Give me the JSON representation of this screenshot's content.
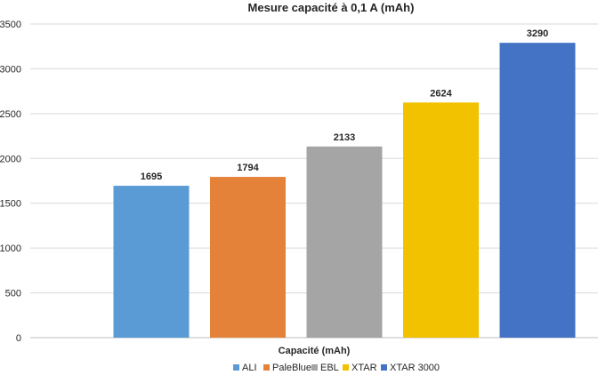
{
  "chart_data": {
    "type": "bar",
    "title": "Mesure capacité à 0,1 A (mAh)",
    "xlabel": "Capacité (mAh)",
    "ylabel": "",
    "ylim": [
      0,
      3500
    ],
    "yticks": [
      0,
      500,
      1000,
      1500,
      2000,
      2500,
      3000,
      3500
    ],
    "grid": true,
    "legend_position": "bottom",
    "series": [
      {
        "name": "ALI",
        "value": 1695,
        "color": "#5b9bd5"
      },
      {
        "name": "PaleBlue",
        "value": 1794,
        "color": "#e5823a"
      },
      {
        "name": "EBL",
        "value": 2133,
        "color": "#a5a5a5"
      },
      {
        "name": "XTAR",
        "value": 2624,
        "color": "#f2c200"
      },
      {
        "name": "XTAR 3000",
        "value": 3290,
        "color": "#4472c4"
      }
    ]
  }
}
